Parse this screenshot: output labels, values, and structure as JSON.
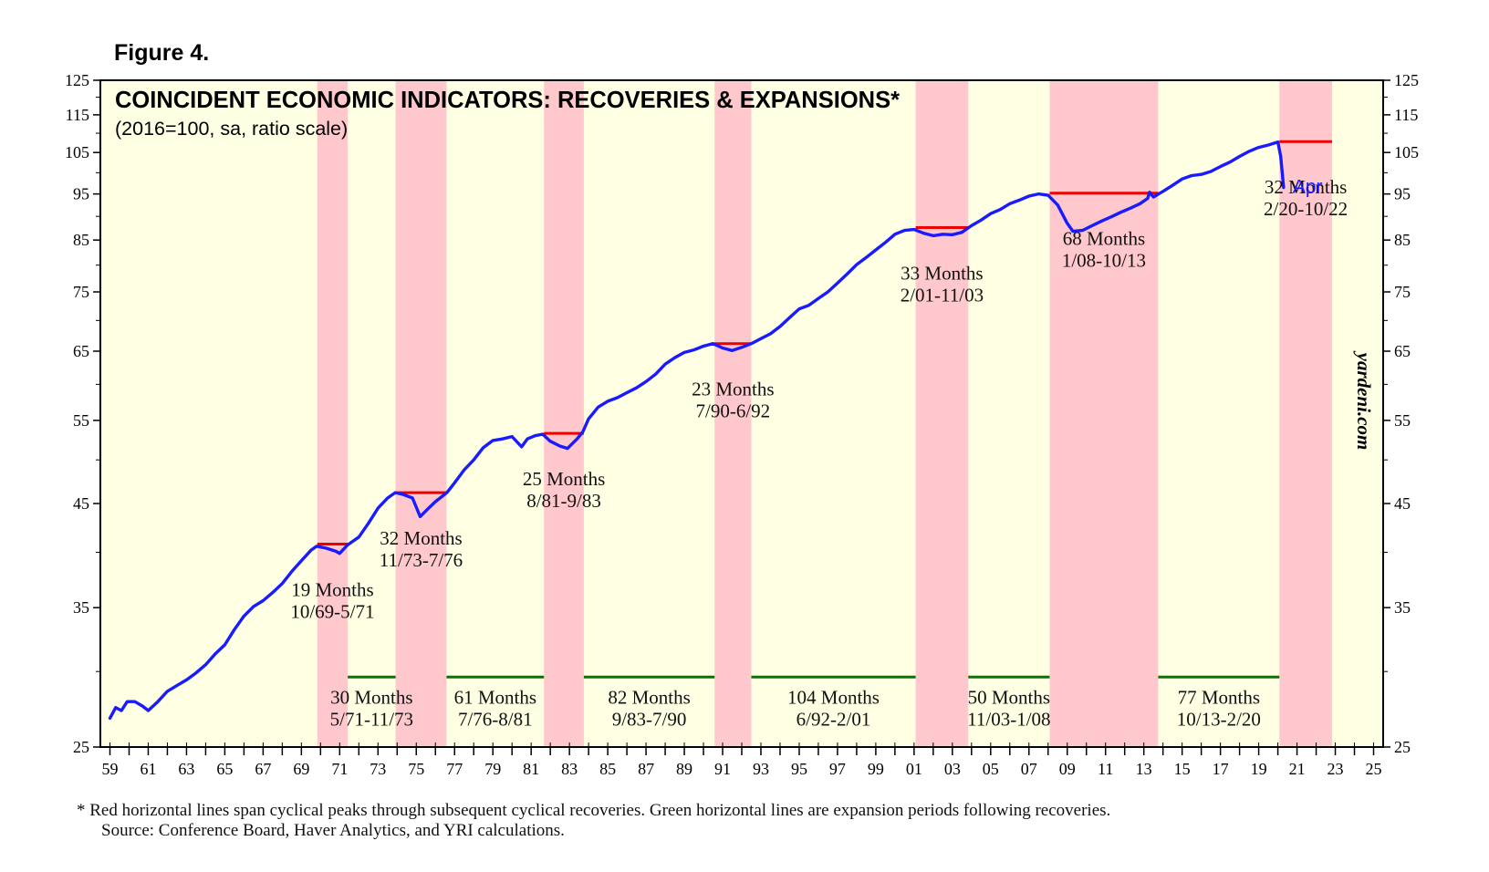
{
  "figure_label": "Figure 4.",
  "footnote_line1": "*  Red horizontal lines span cyclical peaks through subsequent cyclical recoveries. Green horizontal lines are expansion periods following recoveries.",
  "footnote_line2": "Source: Conference Board, Haver Analytics, and YRI calculations.",
  "chart_data": {
    "type": "line",
    "title": "COINCIDENT ECONOMIC INDICATORS: RECOVERIES & EXPANSIONS*",
    "subtitle": "(2016=100, sa, ratio scale)",
    "watermark": "yardeni.com",
    "scale": "log",
    "ylim": [
      25,
      125
    ],
    "xlim": [
      1958.5,
      2025.5
    ],
    "y_ticks": [
      25,
      35,
      45,
      55,
      65,
      75,
      85,
      95,
      105,
      115,
      125
    ],
    "x_ticks": [
      {
        "year": 1959,
        "label": "59"
      },
      {
        "year": 1961,
        "label": "61"
      },
      {
        "year": 1963,
        "label": "63"
      },
      {
        "year": 1965,
        "label": "65"
      },
      {
        "year": 1967,
        "label": "67"
      },
      {
        "year": 1969,
        "label": "69"
      },
      {
        "year": 1971,
        "label": "71"
      },
      {
        "year": 1973,
        "label": "73"
      },
      {
        "year": 1975,
        "label": "75"
      },
      {
        "year": 1977,
        "label": "77"
      },
      {
        "year": 1979,
        "label": "79"
      },
      {
        "year": 1981,
        "label": "81"
      },
      {
        "year": 1983,
        "label": "83"
      },
      {
        "year": 1985,
        "label": "85"
      },
      {
        "year": 1987,
        "label": "87"
      },
      {
        "year": 1989,
        "label": "89"
      },
      {
        "year": 1991,
        "label": "91"
      },
      {
        "year": 1993,
        "label": "93"
      },
      {
        "year": 1995,
        "label": "95"
      },
      {
        "year": 1997,
        "label": "97"
      },
      {
        "year": 1999,
        "label": "99"
      },
      {
        "year": 2001,
        "label": "01"
      },
      {
        "year": 2003,
        "label": "03"
      },
      {
        "year": 2005,
        "label": "05"
      },
      {
        "year": 2007,
        "label": "07"
      },
      {
        "year": 2009,
        "label": "09"
      },
      {
        "year": 2011,
        "label": "11"
      },
      {
        "year": 2013,
        "label": "13"
      },
      {
        "year": 2015,
        "label": "15"
      },
      {
        "year": 2017,
        "label": "17"
      },
      {
        "year": 2019,
        "label": "19"
      },
      {
        "year": 2021,
        "label": "21"
      },
      {
        "year": 2023,
        "label": "23"
      },
      {
        "year": 2025,
        "label": "25"
      }
    ],
    "series": [
      {
        "name": "Coincident Economic Indicators",
        "color": "#1a1aff",
        "end_label": "Apr",
        "points": [
          [
            1959.0,
            26.8
          ],
          [
            1959.3,
            27.5
          ],
          [
            1959.6,
            27.3
          ],
          [
            1959.9,
            27.9
          ],
          [
            1960.3,
            27.9
          ],
          [
            1960.7,
            27.6
          ],
          [
            1961.0,
            27.3
          ],
          [
            1961.5,
            27.9
          ],
          [
            1962.0,
            28.6
          ],
          [
            1962.5,
            29.0
          ],
          [
            1963.0,
            29.4
          ],
          [
            1963.5,
            29.9
          ],
          [
            1964.0,
            30.5
          ],
          [
            1964.5,
            31.3
          ],
          [
            1965.0,
            32.0
          ],
          [
            1965.5,
            33.2
          ],
          [
            1966.0,
            34.3
          ],
          [
            1966.5,
            35.1
          ],
          [
            1967.0,
            35.6
          ],
          [
            1967.5,
            36.3
          ],
          [
            1968.0,
            37.1
          ],
          [
            1968.5,
            38.2
          ],
          [
            1969.0,
            39.2
          ],
          [
            1969.5,
            40.2
          ],
          [
            1969.8,
            40.6
          ],
          [
            1970.3,
            40.4
          ],
          [
            1970.8,
            40.1
          ],
          [
            1971.0,
            39.9
          ],
          [
            1971.4,
            40.7
          ],
          [
            1972.0,
            41.5
          ],
          [
            1972.5,
            42.9
          ],
          [
            1973.0,
            44.5
          ],
          [
            1973.5,
            45.6
          ],
          [
            1973.9,
            46.2
          ],
          [
            1974.3,
            46.0
          ],
          [
            1974.8,
            45.6
          ],
          [
            1975.2,
            43.6
          ],
          [
            1975.6,
            44.4
          ],
          [
            1976.0,
            45.2
          ],
          [
            1976.6,
            46.2
          ],
          [
            1977.0,
            47.3
          ],
          [
            1977.5,
            48.8
          ],
          [
            1978.0,
            50.0
          ],
          [
            1978.5,
            51.5
          ],
          [
            1979.0,
            52.4
          ],
          [
            1979.5,
            52.6
          ],
          [
            1980.0,
            52.9
          ],
          [
            1980.5,
            51.6
          ],
          [
            1980.8,
            52.6
          ],
          [
            1981.2,
            53.0
          ],
          [
            1981.6,
            53.2
          ],
          [
            1982.0,
            52.3
          ],
          [
            1982.5,
            51.7
          ],
          [
            1982.9,
            51.4
          ],
          [
            1983.4,
            52.6
          ],
          [
            1983.7,
            53.5
          ],
          [
            1984.0,
            55.2
          ],
          [
            1984.5,
            56.8
          ],
          [
            1985.0,
            57.6
          ],
          [
            1985.5,
            58.1
          ],
          [
            1986.0,
            58.8
          ],
          [
            1986.5,
            59.5
          ],
          [
            1987.0,
            60.4
          ],
          [
            1987.5,
            61.5
          ],
          [
            1988.0,
            63.0
          ],
          [
            1988.5,
            64.0
          ],
          [
            1989.0,
            64.8
          ],
          [
            1989.5,
            65.2
          ],
          [
            1990.0,
            65.8
          ],
          [
            1990.5,
            66.2
          ],
          [
            1991.0,
            65.5
          ],
          [
            1991.5,
            65.1
          ],
          [
            1992.0,
            65.6
          ],
          [
            1992.5,
            66.2
          ],
          [
            1993.0,
            67.0
          ],
          [
            1993.5,
            67.8
          ],
          [
            1994.0,
            69.0
          ],
          [
            1994.5,
            70.5
          ],
          [
            1995.0,
            72.0
          ],
          [
            1995.5,
            72.6
          ],
          [
            1996.0,
            73.8
          ],
          [
            1996.5,
            75.0
          ],
          [
            1997.0,
            76.6
          ],
          [
            1997.5,
            78.3
          ],
          [
            1998.0,
            80.1
          ],
          [
            1998.5,
            81.5
          ],
          [
            1999.0,
            83.0
          ],
          [
            1999.5,
            84.5
          ],
          [
            2000.0,
            86.2
          ],
          [
            2000.5,
            87.0
          ],
          [
            2001.0,
            87.2
          ],
          [
            2001.5,
            86.4
          ],
          [
            2002.0,
            85.9
          ],
          [
            2002.5,
            86.2
          ],
          [
            2003.0,
            86.1
          ],
          [
            2003.5,
            86.6
          ],
          [
            2004.0,
            88.0
          ],
          [
            2004.5,
            89.2
          ],
          [
            2005.0,
            90.6
          ],
          [
            2005.5,
            91.5
          ],
          [
            2006.0,
            92.8
          ],
          [
            2006.5,
            93.6
          ],
          [
            2007.0,
            94.5
          ],
          [
            2007.5,
            95.0
          ],
          [
            2008.0,
            94.7
          ],
          [
            2008.5,
            92.5
          ],
          [
            2009.0,
            88.5
          ],
          [
            2009.3,
            86.8
          ],
          [
            2009.8,
            87.0
          ],
          [
            2010.3,
            88.0
          ],
          [
            2010.8,
            89.0
          ],
          [
            2011.3,
            89.9
          ],
          [
            2011.8,
            90.9
          ],
          [
            2012.3,
            91.8
          ],
          [
            2012.8,
            92.8
          ],
          [
            2013.2,
            94.0
          ],
          [
            2013.3,
            95.4
          ],
          [
            2013.5,
            94.3
          ],
          [
            2014.0,
            95.6
          ],
          [
            2014.5,
            97.0
          ],
          [
            2015.0,
            98.5
          ],
          [
            2015.5,
            99.3
          ],
          [
            2016.0,
            99.6
          ],
          [
            2016.5,
            100.3
          ],
          [
            2017.0,
            101.5
          ],
          [
            2017.5,
            102.6
          ],
          [
            2018.0,
            104.0
          ],
          [
            2018.5,
            105.3
          ],
          [
            2019.0,
            106.3
          ],
          [
            2019.5,
            106.9
          ],
          [
            2020.0,
            107.7
          ],
          [
            2020.15,
            104.0
          ],
          [
            2020.3,
            96.5
          ]
        ]
      }
    ],
    "recovery_bands": [
      {
        "start": 1969.83,
        "end": 1971.42,
        "label": "19 Months",
        "dates": "10/69-5/71",
        "peak_level": 40.8
      },
      {
        "start": 1973.92,
        "end": 1976.58,
        "label": "32 Months",
        "dates": "11/73-7/76",
        "peak_level": 46.2
      },
      {
        "start": 1981.67,
        "end": 1983.75,
        "label": "25 Months",
        "dates": "8/81-9/83",
        "peak_level": 53.3
      },
      {
        "start": 1990.58,
        "end": 1992.5,
        "label": "23 Months",
        "dates": "7/90-6/92",
        "peak_level": 66.2
      },
      {
        "start": 2001.08,
        "end": 2003.83,
        "label": "33 Months",
        "dates": "2/01-11/03",
        "peak_level": 87.6
      },
      {
        "start": 2008.08,
        "end": 2013.75,
        "label": "68 Months",
        "dates": "1/08-10/13",
        "peak_level": 95.2
      },
      {
        "start": 2020.08,
        "end": 2022.83,
        "label": "32 Months",
        "dates": "2/20-10/22",
        "peak_level": 107.8
      }
    ],
    "expansions": [
      {
        "start": 1971.42,
        "end": 1973.92,
        "label": "30 Months",
        "dates": "5/71-11/73",
        "level": 29.6
      },
      {
        "start": 1976.58,
        "end": 1981.67,
        "label": "61 Months",
        "dates": "7/76-8/81",
        "level": 29.6
      },
      {
        "start": 1983.75,
        "end": 1990.58,
        "label": "82 Months",
        "dates": "9/83-7/90",
        "level": 29.6
      },
      {
        "start": 1992.5,
        "end": 2001.08,
        "label": "104 Months",
        "dates": "6/92-2/01",
        "level": 29.6
      },
      {
        "start": 2003.83,
        "end": 2008.08,
        "label": "50 Months",
        "dates": "11/03-1/08",
        "level": 29.6
      },
      {
        "start": 2013.75,
        "end": 2020.08,
        "label": "77 Months",
        "dates": "10/13-2/20",
        "level": 29.6
      }
    ],
    "colors": {
      "plot_background": "#ffffe3",
      "band": "#ffc8cc",
      "peak_line": "#ee0000",
      "expansion_line": "#007700",
      "series": "#1a1aff"
    }
  }
}
